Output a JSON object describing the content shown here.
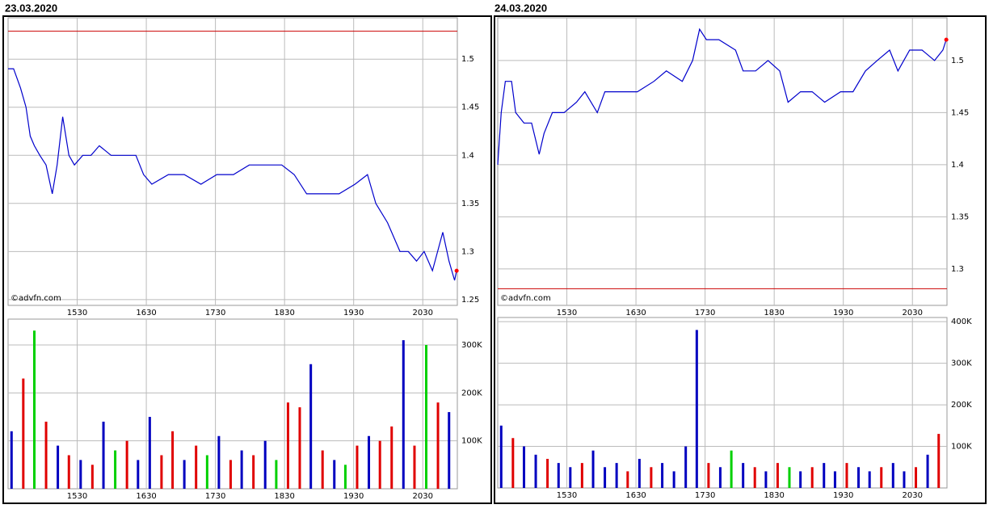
{
  "chart_data": [
    {
      "type": "line",
      "title": "23.03.2020",
      "annotation": "©advfn.com",
      "color": "#0000cc",
      "grid": true,
      "reference_line": 1.529,
      "reference_color": "#cc0000",
      "end_marker_color": "#ff0000",
      "x": [
        14.5,
        14.58,
        14.68,
        14.76,
        14.82,
        14.88,
        14.96,
        15.05,
        15.14,
        15.21,
        15.29,
        15.38,
        15.46,
        15.58,
        15.7,
        15.82,
        15.99,
        16.17,
        16.35,
        16.46,
        16.58,
        16.82,
        17.05,
        17.29,
        17.52,
        17.76,
        17.99,
        18.23,
        18.46,
        18.64,
        18.82,
        19.05,
        19.29,
        19.52,
        19.7,
        19.82,
        19.99,
        20.17,
        20.29,
        20.41,
        20.52,
        20.64,
        20.79,
        20.88,
        20.96,
        20.99
      ],
      "values": [
        1.49,
        1.49,
        1.47,
        1.45,
        1.42,
        1.41,
        1.4,
        1.39,
        1.36,
        1.39,
        1.44,
        1.4,
        1.39,
        1.4,
        1.4,
        1.41,
        1.4,
        1.4,
        1.4,
        1.38,
        1.37,
        1.38,
        1.38,
        1.37,
        1.38,
        1.38,
        1.39,
        1.39,
        1.39,
        1.38,
        1.36,
        1.36,
        1.36,
        1.37,
        1.38,
        1.35,
        1.33,
        1.3,
        1.3,
        1.29,
        1.3,
        1.28,
        1.32,
        1.29,
        1.27,
        1.28
      ],
      "xlim": [
        14.5,
        21.0
      ],
      "xticks": [
        {
          "value": 15.5,
          "label": "1530"
        },
        {
          "value": 16.5,
          "label": "1630"
        },
        {
          "value": 17.5,
          "label": "1730"
        },
        {
          "value": 18.5,
          "label": "1830"
        },
        {
          "value": 19.5,
          "label": "1930"
        },
        {
          "value": 20.5,
          "label": "2030"
        }
      ],
      "ylim": [
        1.244,
        1.543
      ],
      "yticks": [
        1.25,
        1.3,
        1.35,
        1.4,
        1.45,
        1.5
      ]
    },
    {
      "type": "bar",
      "grid": true,
      "x": [
        14.55,
        14.72,
        14.88,
        15.05,
        15.22,
        15.38,
        15.55,
        15.72,
        15.88,
        16.05,
        16.22,
        16.38,
        16.55,
        16.72,
        16.88,
        17.05,
        17.22,
        17.38,
        17.55,
        17.72,
        17.88,
        18.05,
        18.22,
        18.38,
        18.55,
        18.72,
        18.88,
        19.05,
        19.22,
        19.38,
        19.55,
        19.72,
        19.88,
        20.05,
        20.22,
        20.38,
        20.55,
        20.72,
        20.88
      ],
      "values": [
        120000,
        230000,
        330000,
        140000,
        90000,
        70000,
        60000,
        50000,
        140000,
        80000,
        100000,
        60000,
        150000,
        70000,
        120000,
        60000,
        90000,
        70000,
        110000,
        60000,
        80000,
        70000,
        100000,
        60000,
        180000,
        170000,
        260000,
        80000,
        60000,
        50000,
        90000,
        110000,
        100000,
        130000,
        310000,
        90000,
        300000,
        180000,
        160000
      ],
      "colors": [
        "#0000c0",
        "#e00000",
        "#00d000",
        "#e00000",
        "#0000c0",
        "#e00000",
        "#0000c0",
        "#e00000",
        "#0000c0",
        "#00d000",
        "#e00000",
        "#0000c0",
        "#0000c0",
        "#e00000",
        "#e00000",
        "#0000c0",
        "#e00000",
        "#00d000",
        "#0000c0",
        "#e00000",
        "#0000c0",
        "#e00000",
        "#0000c0",
        "#00d000",
        "#e00000",
        "#e00000",
        "#0000c0",
        "#e00000",
        "#0000c0",
        "#00d000",
        "#e00000",
        "#0000c0",
        "#e00000",
        "#e00000",
        "#0000c0",
        "#e00000",
        "#00d000",
        "#e00000",
        "#0000c0"
      ],
      "xlim": [
        14.5,
        21.0
      ],
      "xticks": [
        {
          "value": 15.5,
          "label": "1530"
        },
        {
          "value": 16.5,
          "label": "1630"
        },
        {
          "value": 17.5,
          "label": "1730"
        },
        {
          "value": 18.5,
          "label": "1830"
        },
        {
          "value": 19.5,
          "label": "1930"
        },
        {
          "value": 20.5,
          "label": "2030"
        }
      ],
      "ylim": [
        0,
        354000
      ],
      "yticks": [
        {
          "value": 100000,
          "label": "100K"
        },
        {
          "value": 200000,
          "label": "200K"
        },
        {
          "value": 300000,
          "label": "300K"
        }
      ]
    },
    {
      "type": "line",
      "title": "24.03.2020",
      "annotation": "©advfn.com",
      "color": "#0000cc",
      "grid": true,
      "reference_line": 1.281,
      "reference_color": "#cc0000",
      "end_marker_color": "#ff0000",
      "x": [
        14.5,
        14.55,
        14.61,
        14.7,
        14.76,
        14.88,
        14.99,
        15.1,
        15.17,
        15.29,
        15.46,
        15.64,
        15.76,
        15.94,
        16.05,
        16.29,
        16.52,
        16.76,
        16.94,
        17.17,
        17.32,
        17.42,
        17.52,
        17.7,
        17.94,
        18.05,
        18.23,
        18.41,
        18.58,
        18.7,
        18.88,
        19.05,
        19.23,
        19.46,
        19.64,
        19.82,
        19.99,
        20.17,
        20.29,
        20.46,
        20.64,
        20.82,
        20.94,
        20.99
      ],
      "values": [
        1.4,
        1.45,
        1.48,
        1.48,
        1.45,
        1.44,
        1.44,
        1.41,
        1.43,
        1.45,
        1.45,
        1.46,
        1.47,
        1.45,
        1.47,
        1.47,
        1.47,
        1.48,
        1.49,
        1.48,
        1.5,
        1.53,
        1.52,
        1.52,
        1.51,
        1.49,
        1.49,
        1.5,
        1.49,
        1.46,
        1.47,
        1.47,
        1.46,
        1.47,
        1.47,
        1.49,
        1.5,
        1.51,
        1.49,
        1.51,
        1.51,
        1.5,
        1.51,
        1.52
      ],
      "xlim": [
        14.5,
        21.0
      ],
      "xticks": [
        {
          "value": 15.5,
          "label": "1530"
        },
        {
          "value": 16.5,
          "label": "1630"
        },
        {
          "value": 17.5,
          "label": "1730"
        },
        {
          "value": 18.5,
          "label": "1830"
        },
        {
          "value": 19.5,
          "label": "1930"
        },
        {
          "value": 20.5,
          "label": "2030"
        }
      ],
      "ylim": [
        1.265,
        1.541
      ],
      "yticks": [
        1.3,
        1.35,
        1.4,
        1.45,
        1.5
      ]
    },
    {
      "type": "bar",
      "grid": true,
      "x": [
        14.55,
        14.72,
        14.88,
        15.05,
        15.22,
        15.38,
        15.55,
        15.72,
        15.88,
        16.05,
        16.22,
        16.38,
        16.55,
        16.72,
        16.88,
        17.05,
        17.22,
        17.38,
        17.55,
        17.72,
        17.88,
        18.05,
        18.22,
        18.38,
        18.55,
        18.72,
        18.88,
        19.05,
        19.22,
        19.38,
        19.55,
        19.72,
        19.88,
        20.05,
        20.22,
        20.38,
        20.55,
        20.72,
        20.88
      ],
      "values": [
        150000,
        120000,
        100000,
        80000,
        70000,
        60000,
        50000,
        60000,
        90000,
        50000,
        60000,
        40000,
        70000,
        50000,
        60000,
        40000,
        100000,
        380000,
        60000,
        50000,
        90000,
        60000,
        50000,
        40000,
        60000,
        50000,
        40000,
        50000,
        60000,
        40000,
        60000,
        50000,
        40000,
        50000,
        60000,
        40000,
        50000,
        80000,
        130000
      ],
      "colors": [
        "#0000c0",
        "#e00000",
        "#0000c0",
        "#0000c0",
        "#e00000",
        "#0000c0",
        "#0000c0",
        "#e00000",
        "#0000c0",
        "#0000c0",
        "#0000c0",
        "#e00000",
        "#0000c0",
        "#e00000",
        "#0000c0",
        "#0000c0",
        "#0000c0",
        "#0000c0",
        "#e00000",
        "#0000c0",
        "#00d000",
        "#0000c0",
        "#e00000",
        "#0000c0",
        "#e00000",
        "#00d000",
        "#0000c0",
        "#e00000",
        "#0000c0",
        "#0000c0",
        "#e00000",
        "#0000c0",
        "#0000c0",
        "#e00000",
        "#0000c0",
        "#0000c0",
        "#e00000",
        "#0000c0",
        "#e00000"
      ],
      "xlim": [
        14.5,
        21.0
      ],
      "xticks": [
        {
          "value": 15.5,
          "label": "1530"
        },
        {
          "value": 16.5,
          "label": "1630"
        },
        {
          "value": 17.5,
          "label": "1730"
        },
        {
          "value": 18.5,
          "label": "1830"
        },
        {
          "value": 19.5,
          "label": "1930"
        },
        {
          "value": 20.5,
          "label": "2030"
        }
      ],
      "ylim": [
        0,
        410000
      ],
      "yticks": [
        {
          "value": 100000,
          "label": "100K"
        },
        {
          "value": 200000,
          "label": "200K"
        },
        {
          "value": 300000,
          "label": "300K"
        },
        {
          "value": 400000,
          "label": "400K"
        }
      ]
    }
  ]
}
